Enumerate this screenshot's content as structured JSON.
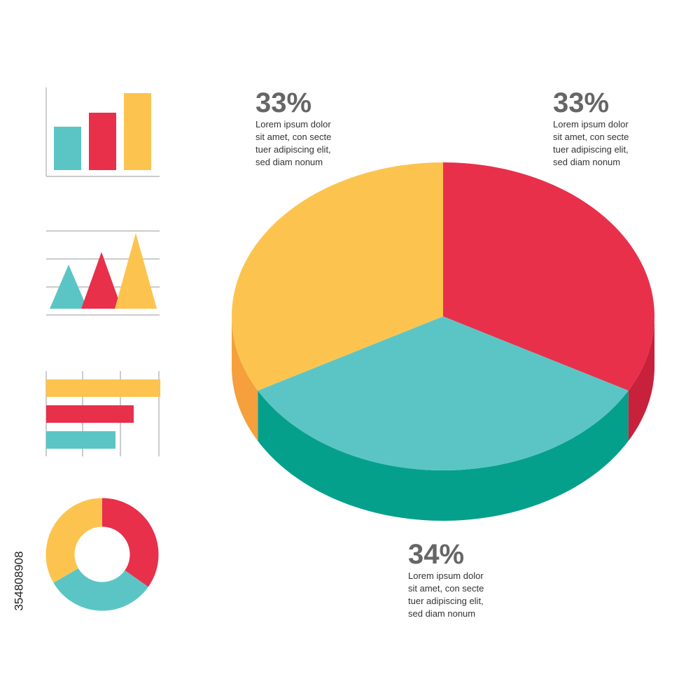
{
  "chart_data": {
    "type": "pie",
    "values": [
      33,
      34,
      33
    ],
    "value_labels": [
      "33%",
      "34%",
      "33%"
    ],
    "colors": [
      "#e8304a",
      "#5bc5c6",
      "#fcc44f"
    ],
    "side_colors": [
      "#c8213b",
      "#05a08c",
      "#f5a03c"
    ],
    "descriptions": [
      [
        "Lorem ipsum dolor",
        "sit amet, con secte",
        "tuer adipiscing elit,",
        "sed diam nonum"
      ],
      [
        "Lorem ipsum dolor",
        "sit amet, con secte",
        "tuer adipiscing elit,",
        "sed diam nonum"
      ],
      [
        "Lorem ipsum dolor",
        "sit amet, con secte",
        "tuer adipiscing elit,",
        "sed diam nonum"
      ]
    ]
  },
  "image_id": "354808908"
}
